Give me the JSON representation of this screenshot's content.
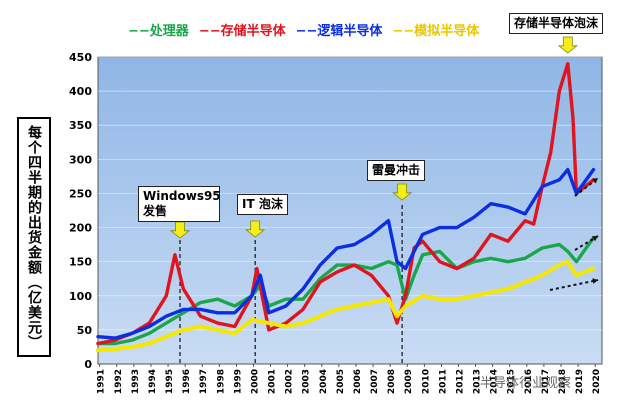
{
  "chart_data": {
    "type": "line",
    "legend": [
      {
        "name": "处理器",
        "color": "#1aa64a"
      },
      {
        "name": "存储半导体",
        "color": "#e0141e"
      },
      {
        "name": "逻辑半导体",
        "color": "#0b2ee0"
      },
      {
        "name": "模拟半导体",
        "color": "#f5e800"
      }
    ],
    "ylabel": "每个四半期的出货金额（亿美元）",
    "ylim": [
      0,
      450
    ],
    "yticks": [
      0,
      50,
      100,
      150,
      200,
      250,
      300,
      350,
      400,
      450
    ],
    "xlim": [
      1991,
      2020.5
    ],
    "xticks": [
      "1991",
      "1992",
      "1993",
      "1994",
      "1995",
      "1996",
      "1997",
      "1998",
      "1999",
      "2000",
      "2001",
      "2002",
      "2003",
      "2004",
      "2005",
      "2006",
      "2007",
      "2008",
      "2009",
      "2010",
      "2011",
      "2012",
      "2013",
      "2014",
      "2015",
      "2016",
      "2017",
      "2018",
      "2019",
      "2020"
    ],
    "series": [
      {
        "name": "处理器",
        "color": "#1aa64a",
        "x": [
          1991,
          1992,
          1993,
          1994,
          1995,
          1996,
          1997,
          1998,
          1999,
          2000,
          2000.5,
          2001,
          2002,
          2003,
          2004,
          2005,
          2006,
          2007,
          2008,
          2008.5,
          2009,
          2009.5,
          2010,
          2011,
          2012,
          2013,
          2014,
          2015,
          2016,
          2017,
          2018,
          2018.5,
          2019,
          2020
        ],
        "y": [
          30,
          30,
          35,
          45,
          60,
          75,
          90,
          95,
          85,
          100,
          115,
          85,
          95,
          95,
          125,
          145,
          145,
          140,
          150,
          145,
          95,
          130,
          160,
          165,
          140,
          150,
          155,
          150,
          155,
          170,
          175,
          165,
          150,
          185
        ]
      },
      {
        "name": "存储半导体",
        "color": "#e0141e",
        "x": [
          1991,
          1992,
          1993,
          1994,
          1995,
          1995.5,
          1996,
          1997,
          1998,
          1999,
          2000,
          2000.3,
          2001,
          2002,
          2003,
          2004,
          2005,
          2006,
          2007,
          2008,
          2008.5,
          2009,
          2009.5,
          2010,
          2011,
          2012,
          2013,
          2014,
          2015,
          2016,
          2016.5,
          2017,
          2017.5,
          2018,
          2018.5,
          2018.8,
          2019,
          2020
        ],
        "y": [
          30,
          35,
          45,
          60,
          100,
          160,
          110,
          70,
          60,
          55,
          100,
          140,
          50,
          60,
          80,
          120,
          135,
          145,
          130,
          100,
          60,
          100,
          170,
          180,
          150,
          140,
          155,
          190,
          180,
          210,
          205,
          260,
          310,
          400,
          440,
          360,
          250,
          270
        ]
      },
      {
        "name": "逻辑半导体",
        "color": "#0b2ee0",
        "x": [
          1991,
          1992,
          1993,
          1994,
          1995,
          1996,
          1997,
          1998,
          1999,
          2000,
          2000.5,
          2001,
          2002,
          2003,
          2004,
          2005,
          2006,
          2007,
          2008,
          2008.5,
          2009,
          2010,
          2011,
          2012,
          2013,
          2014,
          2015,
          2016,
          2017,
          2018,
          2018.5,
          2019,
          2020
        ],
        "y": [
          40,
          38,
          45,
          55,
          70,
          80,
          80,
          75,
          75,
          100,
          130,
          75,
          85,
          110,
          145,
          170,
          175,
          190,
          210,
          150,
          140,
          190,
          200,
          200,
          215,
          235,
          230,
          220,
          260,
          270,
          285,
          250,
          285
        ]
      },
      {
        "name": "模拟半导体",
        "color": "#f5e800",
        "x": [
          1991,
          1992,
          1993,
          1994,
          1995,
          1996,
          1997,
          1998,
          1999,
          2000,
          2001,
          2002,
          2003,
          2004,
          2005,
          2006,
          2007,
          2008,
          2008.5,
          2009,
          2010,
          2011,
          2012,
          2013,
          2014,
          2015,
          2016,
          2017,
          2018,
          2018.5,
          2019,
          2020
        ],
        "y": [
          20,
          22,
          25,
          30,
          40,
          50,
          55,
          50,
          45,
          65,
          60,
          55,
          60,
          70,
          80,
          85,
          90,
          95,
          70,
          85,
          100,
          95,
          95,
          100,
          105,
          110,
          120,
          130,
          145,
          150,
          130,
          140
        ]
      }
    ],
    "annotations": [
      {
        "text": "Windows95 发售",
        "year": 1995.8
      },
      {
        "text": "IT 泡沫",
        "year": 2000.2
      },
      {
        "text": "雷曼冲击",
        "year": 2008.8
      },
      {
        "text": "存储半导体泡沫",
        "year": 2018.5
      }
    ]
  },
  "watermark": "半导体行业观察"
}
